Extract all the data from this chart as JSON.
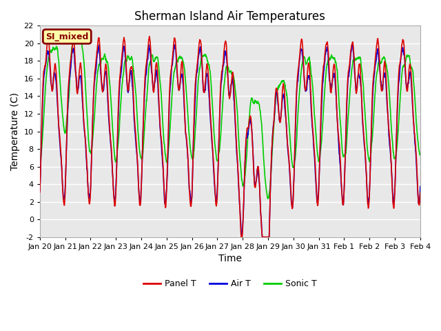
{
  "title": "Sherman Island Air Temperatures",
  "xlabel": "Time",
  "ylabel": "Temperature (C)",
  "ylim": [
    -2,
    22
  ],
  "xlim": [
    0,
    15
  ],
  "xtick_labels": [
    "Jan 20",
    "Jan 21",
    "Jan 22",
    "Jan 23",
    "Jan 24",
    "Jan 25",
    "Jan 26",
    "Jan 27",
    "Jan 28",
    "Jan 29",
    "Jan 30",
    "Jan 31",
    "Feb 1",
    "Feb 2",
    "Feb 3",
    "Feb 4"
  ],
  "xtick_positions": [
    0,
    1,
    2,
    3,
    4,
    5,
    6,
    7,
    8,
    9,
    10,
    11,
    12,
    13,
    14,
    15
  ],
  "panel_color": "#dd0000",
  "air_color": "#0000dd",
  "sonic_color": "#00cc00",
  "legend_labels": [
    "Panel T",
    "Air T",
    "Sonic T"
  ],
  "bg_color": "#e8e8e8",
  "box_label": "SI_mixed",
  "box_facecolor": "#ffffaa",
  "box_edgecolor": "#880000",
  "box_textcolor": "#880000",
  "title_fontsize": 12,
  "axis_label_fontsize": 10,
  "tick_fontsize": 8,
  "linewidth": 1.2
}
